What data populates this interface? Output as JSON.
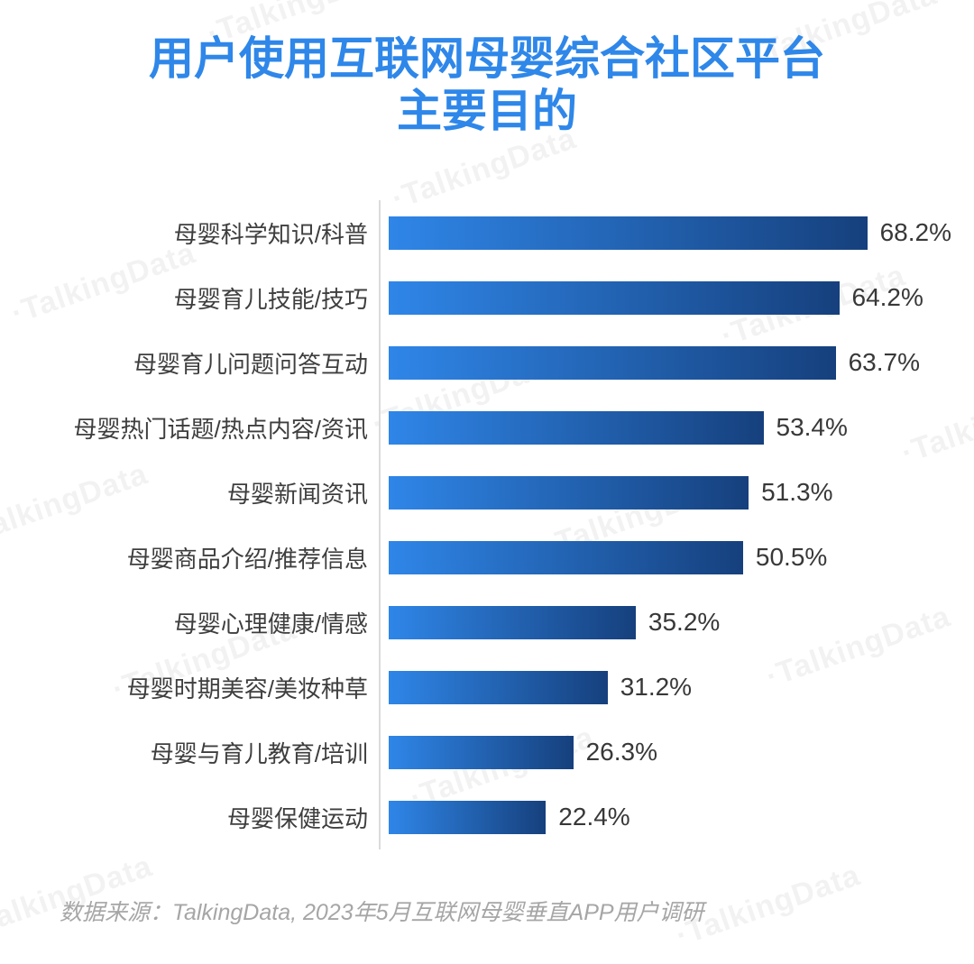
{
  "title": {
    "line1": "用户使用互联网母婴综合社区平台",
    "line2": "主要目的"
  },
  "source_note": "数据来源：TalkingData, 2023年5月互联网母婴垂直APP用户调研",
  "watermark_text": "·TalkingData",
  "colors": {
    "title": "#2E87E9",
    "bar_start": "#2F86E8",
    "bar_end": "#16407D",
    "label": "#3E3E3E",
    "value": "#383838",
    "axis": "#DBDBDB",
    "source_text": "#A6A6A6",
    "watermark": "rgba(0,0,0,0.05)"
  },
  "chart_data": {
    "type": "bar",
    "orientation": "horizontal",
    "title": "用户使用互联网母婴综合社区平台主要目的",
    "categories": [
      "母婴科学知识/科普",
      "母婴育儿技能/技巧",
      "母婴育儿问题问答互动",
      "母婴热门话题/热点内容/资讯",
      "母婴新闻资讯",
      "母婴商品介绍/推荐信息",
      "母婴心理健康/情感",
      "母婴时期美容/美妆种草",
      "母婴与育儿教育/培训",
      "母婴保健运动"
    ],
    "values": [
      68.2,
      64.2,
      63.7,
      53.4,
      51.3,
      50.5,
      35.2,
      31.2,
      26.3,
      22.4
    ],
    "value_labels": [
      "68.2%",
      "64.2%",
      "63.7%",
      "53.4%",
      "51.3%",
      "50.5%",
      "35.2%",
      "31.2%",
      "26.3%",
      "22.4%"
    ],
    "unit": "%",
    "xlim": [
      0,
      70
    ],
    "grid": false,
    "legend": false,
    "bar_style": "horizontal gradient light-blue to dark-navy per bar"
  }
}
